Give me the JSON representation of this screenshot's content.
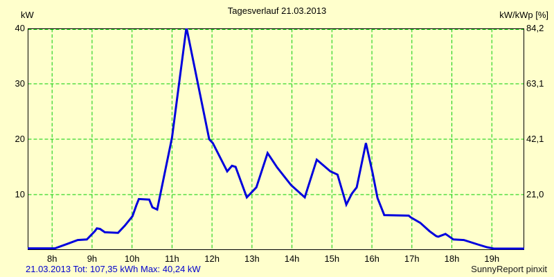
{
  "page": {
    "background": "#FFFFCC"
  },
  "chart_data": {
    "type": "line",
    "title": "Tagesverlauf 21.03.2013",
    "left_axis": {
      "unit": "kW",
      "ticks": [
        {
          "value": 40,
          "label": "40"
        },
        {
          "value": 30,
          "label": "30"
        },
        {
          "value": 20,
          "label": "20"
        },
        {
          "value": 10,
          "label": "10"
        }
      ]
    },
    "right_axis": {
      "unit": "kW/kWp [%]",
      "ticks": [
        {
          "value": 40,
          "label": "84,2"
        },
        {
          "value": 30,
          "label": "63,1"
        },
        {
          "value": 20,
          "label": "42,1"
        },
        {
          "value": 10,
          "label": "21,0"
        }
      ]
    },
    "x_axis": {
      "ticks": [
        {
          "hour": 8,
          "label": "8h"
        },
        {
          "hour": 9,
          "label": "9h"
        },
        {
          "hour": 10,
          "label": "10h"
        },
        {
          "hour": 11,
          "label": "11h"
        },
        {
          "hour": 12,
          "label": "12h"
        },
        {
          "hour": 13,
          "label": "13h"
        },
        {
          "hour": 14,
          "label": "14h"
        },
        {
          "hour": 15,
          "label": "15h"
        },
        {
          "hour": 16,
          "label": "16h"
        },
        {
          "hour": 17,
          "label": "17h"
        },
        {
          "hour": 18,
          "label": "18h"
        },
        {
          "hour": 19,
          "label": "19h"
        }
      ]
    },
    "xlim": [
      7.39,
      19.81
    ],
    "ylim": [
      0,
      40
    ],
    "grid": true,
    "legend": "none",
    "series": [
      {
        "name": "power_kw",
        "points": [
          [
            7.39,
            0.3
          ],
          [
            8.07,
            0.3
          ],
          [
            8.38,
            1.1
          ],
          [
            8.64,
            1.8
          ],
          [
            8.87,
            1.9
          ],
          [
            9.07,
            3.4
          ],
          [
            9.12,
            3.9
          ],
          [
            9.2,
            3.8
          ],
          [
            9.32,
            3.2
          ],
          [
            9.65,
            3.1
          ],
          [
            9.82,
            4.4
          ],
          [
            10.01,
            6.1
          ],
          [
            10.11,
            8.1
          ],
          [
            10.17,
            9.2
          ],
          [
            10.43,
            9.1
          ],
          [
            10.51,
            7.7
          ],
          [
            10.63,
            7.3
          ],
          [
            11.0,
            20.3
          ],
          [
            11.36,
            40.2
          ],
          [
            11.93,
            20.0
          ],
          [
            12.02,
            19.3
          ],
          [
            12.38,
            14.2
          ],
          [
            12.5,
            15.2
          ],
          [
            12.59,
            15.0
          ],
          [
            12.87,
            9.5
          ],
          [
            13.11,
            11.3
          ],
          [
            13.39,
            17.5
          ],
          [
            13.63,
            14.9
          ],
          [
            13.98,
            11.7
          ],
          [
            14.32,
            9.5
          ],
          [
            14.62,
            16.3
          ],
          [
            14.96,
            14.2
          ],
          [
            15.14,
            13.6
          ],
          [
            15.36,
            8.2
          ],
          [
            15.5,
            10.2
          ],
          [
            15.62,
            11.3
          ],
          [
            15.85,
            19.3
          ],
          [
            16.02,
            13.8
          ],
          [
            16.14,
            9.4
          ],
          [
            16.31,
            6.3
          ],
          [
            16.92,
            6.2
          ],
          [
            16.97,
            5.9
          ],
          [
            17.21,
            4.9
          ],
          [
            17.44,
            3.4
          ],
          [
            17.61,
            2.5
          ],
          [
            17.66,
            2.4
          ],
          [
            17.84,
            2.9
          ],
          [
            18.04,
            1.9
          ],
          [
            18.3,
            1.8
          ],
          [
            18.65,
            1.0
          ],
          [
            18.88,
            0.5
          ],
          [
            19.05,
            0.25
          ],
          [
            19.81,
            0.25
          ]
        ]
      }
    ],
    "footer_left": "21.03.2013 Tot: 107,35 kWh Max: 40,24 kW",
    "footer_right": "SunnyReport pinxit",
    "colors": {
      "background": "#FFFFCC",
      "grid": "#00CC00",
      "line": "#0000DD",
      "frame": "#000000",
      "footer_left_text": "#0000CC",
      "text": "#000000"
    }
  }
}
